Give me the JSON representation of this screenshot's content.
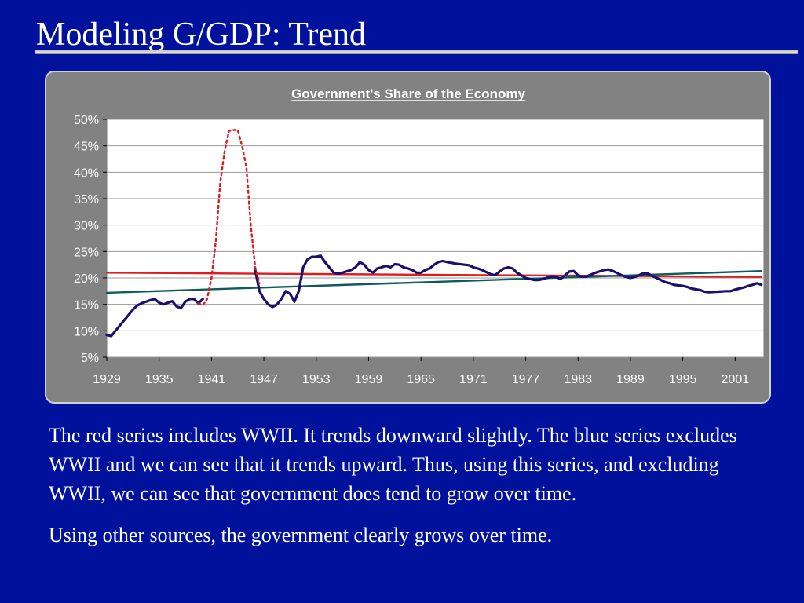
{
  "slide": {
    "title": "Modeling G/GDP: Trend",
    "paragraphs": [
      "The red series includes WWII. It trends downward slightly. The blue series excludes WWII and we can see that it trends upward. Thus, using this series, and excluding WWII, we can see that government does tend to grow over time.",
      "Using other sources, the government clearly grows over time."
    ]
  },
  "colors": {
    "background": "#00119c",
    "panel": "#828282",
    "plot": "#ffffff",
    "series_main": "#1a0f6e",
    "series_wwii": "#e01b1b",
    "trend_incl_wwii": "#e01b1b",
    "trend_excl_wwii": "#0f5a5a"
  },
  "chart_data": {
    "type": "line",
    "title": "Government's Share of the Economy",
    "xlabel": "",
    "ylabel": "",
    "x_ticks": [
      "1929",
      "1935",
      "1941",
      "1947",
      "1953",
      "1959",
      "1965",
      "1971",
      "1977",
      "1983",
      "1989",
      "1995",
      "2001"
    ],
    "y_ticks": [
      "5%",
      "10%",
      "15%",
      "20%",
      "25%",
      "30%",
      "35%",
      "40%",
      "45%",
      "50%"
    ],
    "xlim": [
      1929,
      2004.3
    ],
    "ylim": [
      5,
      50
    ],
    "grid": "horizontal",
    "legend": "none",
    "series": [
      {
        "style": "solid",
        "x": [
          1929,
          1929.5,
          1930,
          1930.5,
          1931,
          1931.5,
          1932,
          1932.5,
          1933,
          1934,
          1934.5,
          1935,
          1935.5,
          1936,
          1936.5,
          1937,
          1937.5,
          1938,
          1938.5,
          1939,
          1939.5,
          1940
        ],
        "y": [
          9.2,
          9.0,
          10.0,
          11.0,
          12.0,
          13.0,
          14.0,
          14.8,
          15.2,
          15.8,
          16.0,
          15.3,
          15.0,
          15.3,
          15.6,
          14.6,
          14.3,
          15.5,
          16.0,
          16.0,
          15.2,
          16.0
        ]
      },
      {
        "style": "dotted",
        "x": [
          1939.5,
          1940,
          1940.5,
          1941,
          1941.5,
          1942,
          1942.5,
          1943,
          1943.5,
          1944,
          1944.5,
          1945,
          1945.5,
          1946,
          1946.5
        ],
        "y": [
          15.2,
          14.8,
          16.0,
          20.0,
          27.0,
          38.0,
          44.0,
          47.8,
          48.0,
          48.0,
          45.0,
          41.0,
          30.0,
          22.0,
          19.0
        ]
      },
      {
        "style": "solid",
        "x": [
          1946,
          1946.5,
          1947,
          1947.5,
          1948,
          1948.5,
          1949,
          1949.5,
          1950,
          1950.5,
          1951,
          1951.5,
          1952,
          1952.5,
          1953,
          1953.5,
          1954,
          1954.5,
          1955,
          1955.5,
          1956,
          1957,
          1957.5,
          1958,
          1958.5,
          1959,
          1959.5,
          1960,
          1960.5,
          1961,
          1961.5,
          1962,
          1962.5,
          1963,
          1963.5,
          1964,
          1964.5,
          1965,
          1965.5,
          1966,
          1966.5,
          1967,
          1967.5,
          1968,
          1969,
          1970,
          1970.5,
          1971,
          1971.5,
          1972,
          1973,
          1973.5,
          1974,
          1974.5,
          1975,
          1975.5,
          1976,
          1976.5,
          1977,
          1977.5,
          1978,
          1978.5,
          1979,
          1980,
          1980.5,
          1981,
          1981.5,
          1982,
          1982.5,
          1983,
          1983.5,
          1984,
          1985,
          1986,
          1986.5,
          1987,
          1988,
          1988.5,
          1989,
          1989.5,
          1990,
          1990.5,
          1991,
          1991.5,
          1992,
          1993,
          1993.5,
          1994,
          1995,
          1995.5,
          1996,
          1997,
          1997.5,
          1998,
          1999,
          2000,
          2000.5,
          2001,
          2002,
          2002.5,
          2003,
          2003.5,
          2004
        ],
        "y": [
          21.5,
          17.5,
          16.0,
          15.0,
          14.5,
          15.0,
          16.0,
          17.5,
          17.0,
          15.5,
          17.5,
          22.0,
          23.5,
          24.0,
          24.0,
          24.2,
          23.0,
          22.0,
          21.0,
          20.8,
          21.0,
          21.5,
          22.0,
          23.0,
          22.5,
          21.5,
          21.0,
          21.8,
          22.0,
          22.3,
          22.0,
          22.6,
          22.5,
          22.0,
          21.8,
          21.5,
          21.0,
          21.0,
          21.5,
          21.8,
          22.5,
          23.0,
          23.2,
          23.0,
          22.7,
          22.5,
          22.4,
          22.0,
          21.8,
          21.5,
          20.7,
          20.5,
          21.2,
          21.8,
          22.0,
          21.8,
          21.0,
          20.5,
          20.0,
          19.8,
          19.6,
          19.6,
          19.8,
          20.3,
          20.2,
          19.8,
          20.5,
          21.2,
          21.3,
          20.5,
          20.2,
          20.3,
          21.0,
          21.5,
          21.6,
          21.3,
          20.5,
          20.2,
          20.0,
          20.2,
          20.5,
          20.9,
          20.8,
          20.4,
          20.0,
          19.2,
          19.0,
          18.7,
          18.5,
          18.3,
          18.0,
          17.7,
          17.4,
          17.3,
          17.4,
          17.5,
          17.5,
          17.8,
          18.2,
          18.5,
          18.7,
          19.0,
          18.7
        ]
      },
      {
        "name": "",
        "style": "trend",
        "x": [
          1929,
          2004
        ],
        "y": [
          21.0,
          20.2
        ]
      },
      {
        "name": "",
        "style": "trend",
        "x": [
          1929,
          2004
        ],
        "y": [
          17.2,
          21.3
        ]
      }
    ]
  }
}
